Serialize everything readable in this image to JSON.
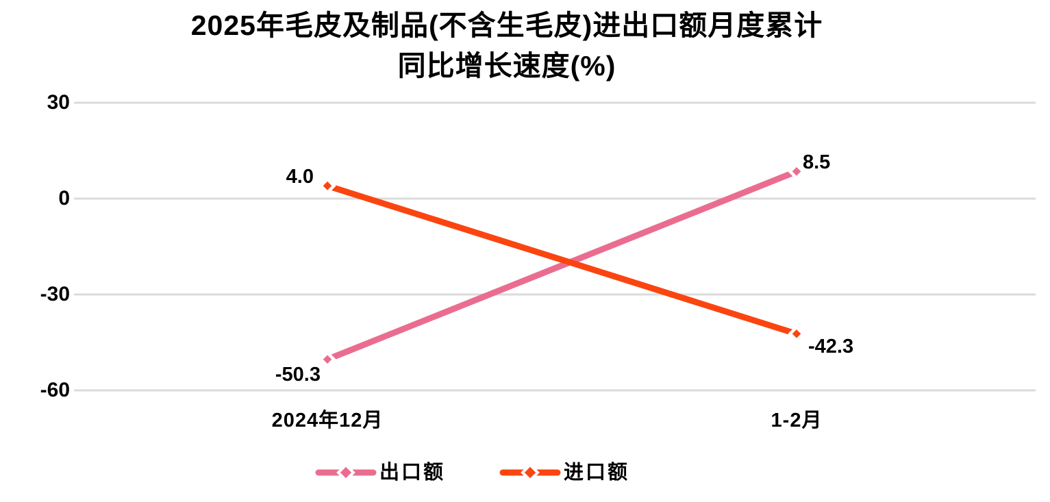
{
  "title": {
    "line1": "2025年毛皮及制品(不含生毛皮)进出口额月度累计",
    "line2": "同比增长速度(%)"
  },
  "colors": {
    "export_series": "#EA6D90",
    "import_series": "#FB4510",
    "gridline": "#DBDBDB",
    "marker_outline": "#FFFFFF",
    "text": "#000000",
    "background": "#FFFFFF"
  },
  "chart_data": {
    "type": "line",
    "title": "2025年毛皮及制品(不含生毛皮)进出口额月度累计同比增长速度(%)",
    "categories": [
      "2024年12月",
      "1-2月"
    ],
    "series": [
      {
        "name": "出口额",
        "color": "#EA6D90",
        "marker": "diamond",
        "values": [
          -50.3,
          8.5
        ],
        "data_labels": [
          "-50.3",
          "8.5"
        ]
      },
      {
        "name": "进口额",
        "color": "#FB4510",
        "marker": "diamond",
        "values": [
          4.0,
          -42.3
        ],
        "data_labels": [
          "4.0",
          "-42.3"
        ]
      }
    ],
    "y_ticks": [
      30,
      0,
      -30,
      -60
    ],
    "ylim": [
      -60,
      30
    ],
    "xlabel": "",
    "ylabel": "",
    "grid": true,
    "legend_position": "bottom"
  }
}
